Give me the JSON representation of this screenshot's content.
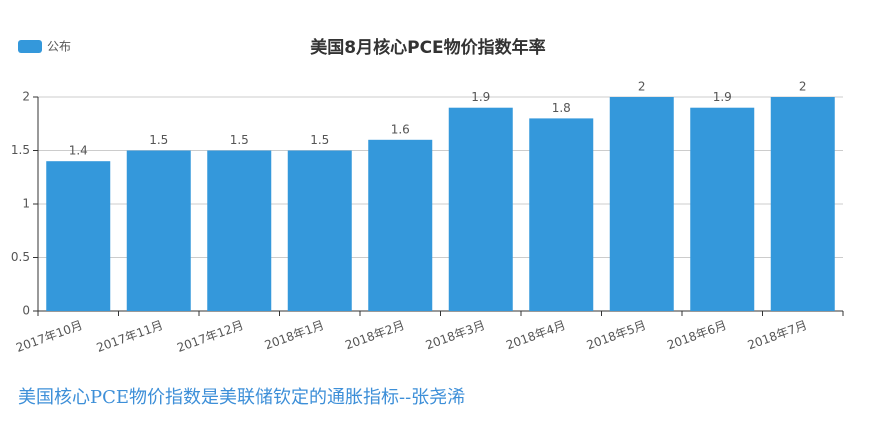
{
  "chart_data": {
    "type": "bar",
    "title": "美国8月核心PCE物价指数年率",
    "categories": [
      "2017年10月",
      "2017年11月",
      "2017年12月",
      "2018年1月",
      "2018年2月",
      "2018年3月",
      "2018年4月",
      "2018年5月",
      "2018年6月",
      "2018年7月"
    ],
    "series": [
      {
        "name": "公布",
        "color": "#3498db",
        "values": [
          1.4,
          1.5,
          1.5,
          1.5,
          1.6,
          1.9,
          1.8,
          2,
          1.9,
          2
        ]
      }
    ],
    "ylim": [
      0,
      2
    ],
    "yticks": [
      0,
      0.5,
      1,
      1.5,
      2
    ],
    "grid": true,
    "legend": "top-left"
  },
  "caption": "美国核心PCE物价指数是美联储钦定的通胀指标--张尧浠"
}
